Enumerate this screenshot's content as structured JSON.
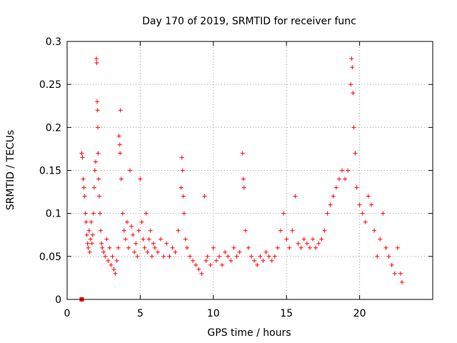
{
  "chart_data": {
    "type": "scatter",
    "title": "Day 170 of 2019, SRMTID for receiver func",
    "xlabel": "GPS time / hours",
    "ylabel": "SRMTID / TECUs",
    "xlim": [
      0,
      25
    ],
    "ylim": [
      0,
      0.3
    ],
    "x_ticks": [
      0,
      5,
      10,
      15,
      20
    ],
    "y_ticks": [
      0,
      0.05,
      0.1,
      0.15,
      0.2,
      0.25,
      0.3
    ],
    "x_tick_labels": [
      "0",
      "5",
      "10",
      "15",
      "20"
    ],
    "y_tick_labels": [
      "0",
      "0.05",
      "0.1",
      "0.15",
      "0.2",
      "0.25",
      "0.3"
    ],
    "grid": true,
    "marker": "plus",
    "color": "#ff0000",
    "zero_marker": {
      "x": 1.0,
      "y": 0.0
    },
    "series": [
      {
        "points": [
          [
            1.0,
            0.17
          ],
          [
            1.05,
            0.165
          ],
          [
            1.1,
            0.14
          ],
          [
            1.15,
            0.13
          ],
          [
            1.2,
            0.12
          ],
          [
            1.25,
            0.1
          ],
          [
            1.3,
            0.09
          ],
          [
            1.35,
            0.075
          ],
          [
            1.4,
            0.065
          ],
          [
            1.45,
            0.06
          ],
          [
            1.5,
            0.08
          ],
          [
            1.55,
            0.055
          ],
          [
            1.6,
            0.07
          ],
          [
            1.65,
            0.09
          ],
          [
            1.7,
            0.065
          ],
          [
            1.75,
            0.075
          ],
          [
            1.8,
            0.1
          ],
          [
            1.85,
            0.13
          ],
          [
            1.9,
            0.15
          ],
          [
            1.95,
            0.16
          ],
          [
            2.0,
            0.28
          ],
          [
            2.02,
            0.275
          ],
          [
            2.05,
            0.23
          ],
          [
            2.08,
            0.22
          ],
          [
            2.1,
            0.2
          ],
          [
            2.12,
            0.17
          ],
          [
            2.15,
            0.14
          ],
          [
            2.2,
            0.12
          ],
          [
            2.25,
            0.1
          ],
          [
            2.3,
            0.08
          ],
          [
            2.35,
            0.065
          ],
          [
            2.4,
            0.06
          ],
          [
            2.5,
            0.055
          ],
          [
            2.6,
            0.05
          ],
          [
            2.7,
            0.07
          ],
          [
            2.8,
            0.045
          ],
          [
            2.9,
            0.06
          ],
          [
            3.0,
            0.04
          ],
          [
            3.1,
            0.05
          ],
          [
            3.2,
            0.035
          ],
          [
            3.3,
            0.03
          ],
          [
            3.4,
            0.045
          ],
          [
            3.5,
            0.06
          ],
          [
            3.55,
            0.19
          ],
          [
            3.6,
            0.18
          ],
          [
            3.62,
            0.17
          ],
          [
            3.65,
            0.22
          ],
          [
            3.7,
            0.14
          ],
          [
            3.8,
            0.1
          ],
          [
            3.9,
            0.08
          ],
          [
            4.0,
            0.07
          ],
          [
            4.1,
            0.09
          ],
          [
            4.2,
            0.06
          ],
          [
            4.3,
            0.15
          ],
          [
            4.4,
            0.085
          ],
          [
            4.5,
            0.075
          ],
          [
            4.6,
            0.055
          ],
          [
            4.7,
            0.065
          ],
          [
            4.8,
            0.05
          ],
          [
            4.9,
            0.08
          ],
          [
            5.0,
            0.14
          ],
          [
            5.1,
            0.09
          ],
          [
            5.2,
            0.07
          ],
          [
            5.3,
            0.06
          ],
          [
            5.4,
            0.1
          ],
          [
            5.5,
            0.055
          ],
          [
            5.6,
            0.07
          ],
          [
            5.7,
            0.08
          ],
          [
            5.8,
            0.05
          ],
          [
            5.9,
            0.065
          ],
          [
            6.0,
            0.06
          ],
          [
            6.2,
            0.055
          ],
          [
            6.4,
            0.07
          ],
          [
            6.6,
            0.05
          ],
          [
            6.8,
            0.065
          ],
          [
            7.0,
            0.05
          ],
          [
            7.2,
            0.06
          ],
          [
            7.4,
            0.055
          ],
          [
            7.6,
            0.08
          ],
          [
            7.8,
            0.13
          ],
          [
            7.85,
            0.165
          ],
          [
            7.9,
            0.15
          ],
          [
            7.95,
            0.12
          ],
          [
            8.0,
            0.1
          ],
          [
            8.1,
            0.07
          ],
          [
            8.2,
            0.06
          ],
          [
            8.4,
            0.05
          ],
          [
            8.6,
            0.045
          ],
          [
            8.8,
            0.04
          ],
          [
            9.0,
            0.035
          ],
          [
            9.2,
            0.03
          ],
          [
            9.4,
            0.12
          ],
          [
            9.5,
            0.045
          ],
          [
            9.6,
            0.05
          ],
          [
            9.8,
            0.04
          ],
          [
            10.0,
            0.06
          ],
          [
            10.2,
            0.045
          ],
          [
            10.4,
            0.05
          ],
          [
            10.6,
            0.04
          ],
          [
            10.8,
            0.055
          ],
          [
            11.0,
            0.05
          ],
          [
            11.2,
            0.045
          ],
          [
            11.4,
            0.06
          ],
          [
            11.6,
            0.05
          ],
          [
            11.8,
            0.055
          ],
          [
            12.0,
            0.17
          ],
          [
            12.05,
            0.14
          ],
          [
            12.1,
            0.13
          ],
          [
            12.2,
            0.08
          ],
          [
            12.4,
            0.06
          ],
          [
            12.6,
            0.05
          ],
          [
            12.8,
            0.045
          ],
          [
            13.0,
            0.04
          ],
          [
            13.2,
            0.05
          ],
          [
            13.4,
            0.045
          ],
          [
            13.6,
            0.055
          ],
          [
            13.8,
            0.05
          ],
          [
            14.0,
            0.045
          ],
          [
            14.2,
            0.05
          ],
          [
            14.4,
            0.06
          ],
          [
            14.6,
            0.08
          ],
          [
            14.8,
            0.1
          ],
          [
            15.0,
            0.07
          ],
          [
            15.2,
            0.06
          ],
          [
            15.4,
            0.08
          ],
          [
            15.6,
            0.12
          ],
          [
            15.8,
            0.065
          ],
          [
            16.0,
            0.06
          ],
          [
            16.2,
            0.07
          ],
          [
            16.4,
            0.065
          ],
          [
            16.6,
            0.06
          ],
          [
            16.8,
            0.07
          ],
          [
            17.0,
            0.06
          ],
          [
            17.2,
            0.065
          ],
          [
            17.4,
            0.07
          ],
          [
            17.6,
            0.08
          ],
          [
            17.8,
            0.1
          ],
          [
            18.0,
            0.11
          ],
          [
            18.2,
            0.12
          ],
          [
            18.4,
            0.13
          ],
          [
            18.6,
            0.14
          ],
          [
            18.8,
            0.15
          ],
          [
            19.0,
            0.14
          ],
          [
            19.2,
            0.15
          ],
          [
            19.4,
            0.25
          ],
          [
            19.45,
            0.28
          ],
          [
            19.5,
            0.27
          ],
          [
            19.55,
            0.24
          ],
          [
            19.6,
            0.2
          ],
          [
            19.7,
            0.17
          ],
          [
            19.8,
            0.13
          ],
          [
            20.0,
            0.11
          ],
          [
            20.2,
            0.1
          ],
          [
            20.4,
            0.09
          ],
          [
            20.6,
            0.12
          ],
          [
            20.8,
            0.11
          ],
          [
            21.0,
            0.08
          ],
          [
            21.2,
            0.05
          ],
          [
            21.4,
            0.07
          ],
          [
            21.6,
            0.1
          ],
          [
            21.8,
            0.06
          ],
          [
            22.0,
            0.05
          ],
          [
            22.2,
            0.04
          ],
          [
            22.4,
            0.03
          ],
          [
            22.6,
            0.06
          ],
          [
            22.8,
            0.03
          ],
          [
            22.9,
            0.02
          ]
        ]
      }
    ]
  }
}
